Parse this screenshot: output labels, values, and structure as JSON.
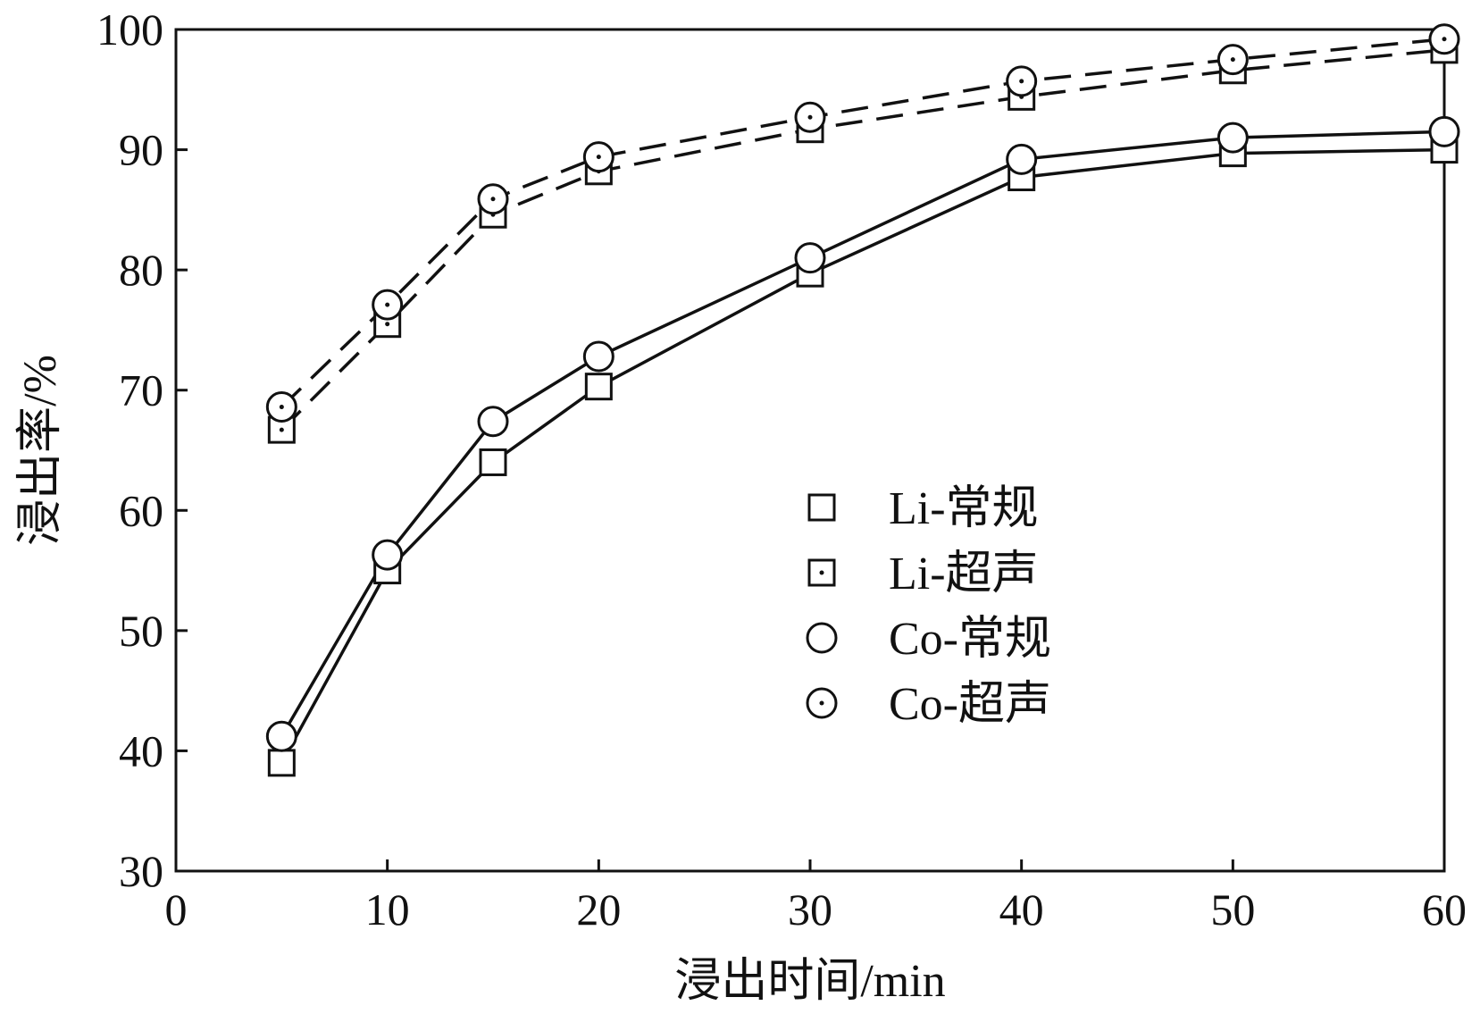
{
  "chart_data": {
    "type": "line",
    "title": "",
    "xlabel": "浸出时间/min",
    "ylabel": "浸出率/%",
    "xlim": [
      0,
      60
    ],
    "ylim": [
      30,
      100
    ],
    "xticks": [
      0,
      10,
      20,
      30,
      40,
      50,
      60
    ],
    "yticks": [
      30,
      40,
      50,
      60,
      70,
      80,
      90,
      100
    ],
    "grid": false,
    "legend_position": "center-right",
    "x": [
      5,
      10,
      15,
      20,
      30,
      40,
      50,
      60
    ],
    "series": [
      {
        "name": "Li-常规",
        "marker": "square",
        "line": "solid",
        "values": [
          39.0,
          55.0,
          64.0,
          70.3,
          79.7,
          87.7,
          89.7,
          90.0
        ]
      },
      {
        "name": "Li-超声",
        "marker": "square-dot",
        "line": "dashed",
        "values": [
          66.7,
          75.5,
          84.6,
          88.2,
          91.7,
          94.4,
          96.6,
          98.3
        ]
      },
      {
        "name": "Co-常规",
        "marker": "circle",
        "line": "solid",
        "values": [
          41.2,
          56.3,
          67.4,
          72.8,
          81.0,
          89.2,
          91.0,
          91.5
        ]
      },
      {
        "name": "Co-超声",
        "marker": "circle-dot",
        "line": "dashed",
        "values": [
          68.6,
          77.1,
          85.9,
          89.4,
          92.7,
          95.7,
          97.5,
          99.2
        ]
      }
    ]
  }
}
